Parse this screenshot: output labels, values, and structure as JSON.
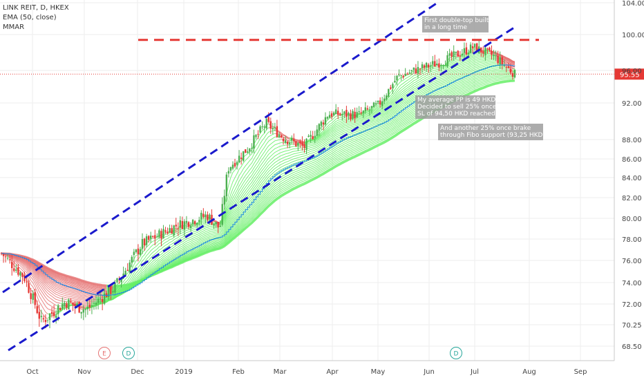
{
  "legend": {
    "title": "LINK REIT, D, HKEX",
    "indicator1": "EMA (50, close)",
    "indicator2": "MMAR"
  },
  "current_price_label": "95.55",
  "annotations": [
    {
      "lines": [
        "First double-top built",
        "in a long time"
      ]
    },
    {
      "lines": [
        "My average PP is 49 HKD.",
        "Decided to sell 25% once",
        "SL of 94,50 HKD reached"
      ]
    },
    {
      "lines": [
        "And another 25% once brake",
        "through Fibo support (93,25 HKD)"
      ]
    }
  ],
  "event_markers": [
    "E",
    "D",
    "D"
  ],
  "colors": {
    "up": "#4caf50",
    "down": "#e53935",
    "ema": "#1e88e5",
    "channel": "#1a1acc",
    "resistance": "#e53935",
    "ribbon_green": "#66ee66",
    "ribbon_red": "#e57373",
    "note_bg": "#9e9e9e"
  },
  "chart_data": {
    "type": "candlestick",
    "title": "LINK REIT, D, HKEX",
    "y_ticks": [
      104.0,
      100.0,
      96.0,
      92.0,
      88.0,
      86.0,
      84.0,
      82.0,
      80.0,
      78.0,
      76.0,
      74.0,
      72.0,
      70.25,
      68.5
    ],
    "y_tick_labels": [
      "104.00",
      "100.00",
      "96.00",
      "92.00",
      "88.00",
      "86.00",
      "84.00",
      "82.00",
      "80.00",
      "78.00",
      "76.00",
      "74.00",
      "72.00",
      "70.25",
      "68.50"
    ],
    "x_tick_labels": [
      "Oct",
      "Nov",
      "Dec",
      "2019",
      "Feb",
      "Mar",
      "Apr",
      "May",
      "Jun",
      "Jul",
      "Aug",
      "Sep"
    ],
    "last_price": 95.55,
    "resistance_level": 99.4,
    "series": [
      {
        "name": "price",
        "type": "candlestick",
        "close_path": [
          [
            "Sep",
            76.8
          ],
          [
            "Oct",
            74.0
          ],
          [
            "Oct",
            70.5
          ],
          [
            "Nov",
            72.0
          ],
          [
            "Nov",
            71.0
          ],
          [
            "Nov",
            73.5
          ],
          [
            "Dec",
            77.5
          ],
          [
            "2019",
            79.0
          ],
          [
            "2019",
            80.5
          ],
          [
            "Feb",
            79.0
          ],
          [
            "Feb",
            85.0
          ],
          [
            "Feb",
            87.0
          ],
          [
            "Mar",
            89.5
          ],
          [
            "Mar",
            88.5
          ],
          [
            "Apr",
            87.0
          ],
          [
            "Apr",
            90.5
          ],
          [
            "Apr",
            91.0
          ],
          [
            "May",
            91.5
          ],
          [
            "May",
            95.0
          ],
          [
            "Jun",
            95.5
          ],
          [
            "Jun",
            97.0
          ],
          [
            "Jul",
            98.5
          ],
          [
            "Jul",
            97.5
          ],
          [
            "Jul",
            95.5
          ]
        ]
      },
      {
        "name": "EMA (50, close)",
        "type": "line"
      },
      {
        "name": "MMAR",
        "type": "ribbon"
      }
    ]
  }
}
